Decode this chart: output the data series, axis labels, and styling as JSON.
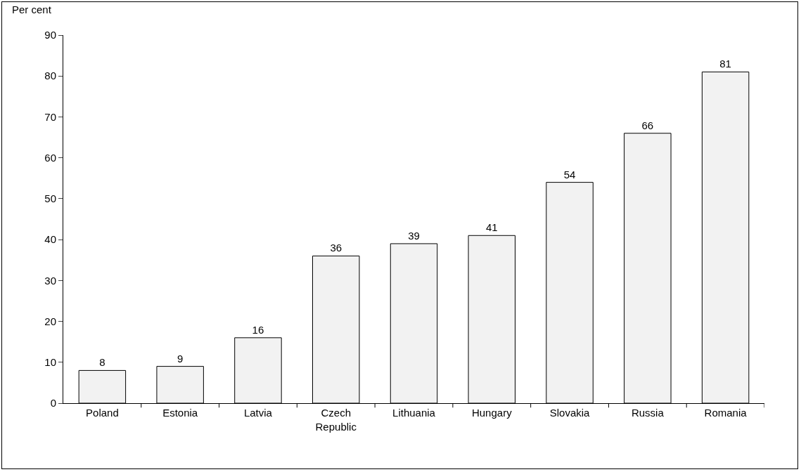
{
  "chart_data": {
    "type": "bar",
    "ylabel": "Per cent",
    "categories": [
      "Poland",
      "Estonia",
      "Latvia",
      "Czech Republic",
      "Lithuania",
      "Hungary",
      "Slovakia",
      "Russia",
      "Romania"
    ],
    "values": [
      8,
      9,
      16,
      36,
      39,
      41,
      54,
      66,
      81
    ],
    "color": "#f2f2f2",
    "ylim": [
      0,
      90
    ],
    "yticks": [
      0,
      10,
      20,
      30,
      40,
      50,
      60,
      70,
      80,
      90
    ],
    "data_labels": true,
    "grid": false
  }
}
